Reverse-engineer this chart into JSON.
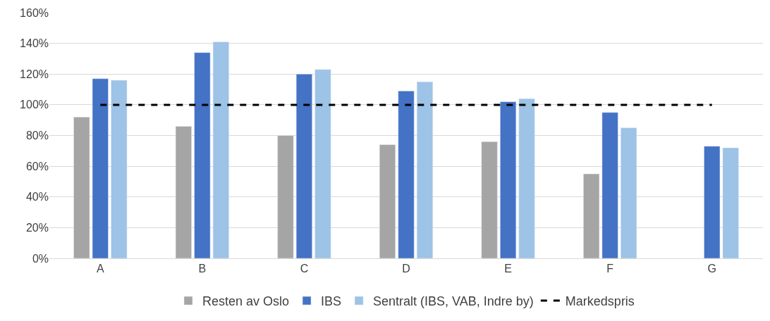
{
  "chart_data": {
    "type": "bar",
    "categories": [
      "A",
      "B",
      "C",
      "D",
      "E",
      "F",
      "G"
    ],
    "series": [
      {
        "name": "Resten av Oslo",
        "color": "#a5a5a5",
        "values": [
          92,
          86,
          80,
          74,
          76,
          55,
          null
        ]
      },
      {
        "name": "IBS",
        "color": "#4472c4",
        "values": [
          117,
          134,
          120,
          109,
          102,
          95,
          73
        ]
      },
      {
        "name": "Sentralt (IBS, VAB, Indre by)",
        "color": "#9dc3e6",
        "values": [
          116,
          141,
          123,
          115,
          104,
          85,
          72
        ]
      },
      {
        "name": "Markedspris",
        "color": "#000000",
        "type": "line",
        "line_style": "dashed",
        "marker": "none",
        "values": [
          100,
          100,
          100,
          100,
          100,
          100,
          100
        ]
      }
    ],
    "ylim": [
      0,
      160
    ],
    "yticks": [
      {
        "value": 0,
        "label": "0%"
      },
      {
        "value": 20,
        "label": "20%"
      },
      {
        "value": 40,
        "label": "40%"
      },
      {
        "value": 60,
        "label": "60%"
      },
      {
        "value": 80,
        "label": "80%"
      },
      {
        "value": 100,
        "label": "100%"
      },
      {
        "value": 120,
        "label": "120%"
      },
      {
        "value": 140,
        "label": "140%"
      },
      {
        "value": 160,
        "label": "160%"
      }
    ],
    "grid": "y",
    "legend": "bottom"
  }
}
